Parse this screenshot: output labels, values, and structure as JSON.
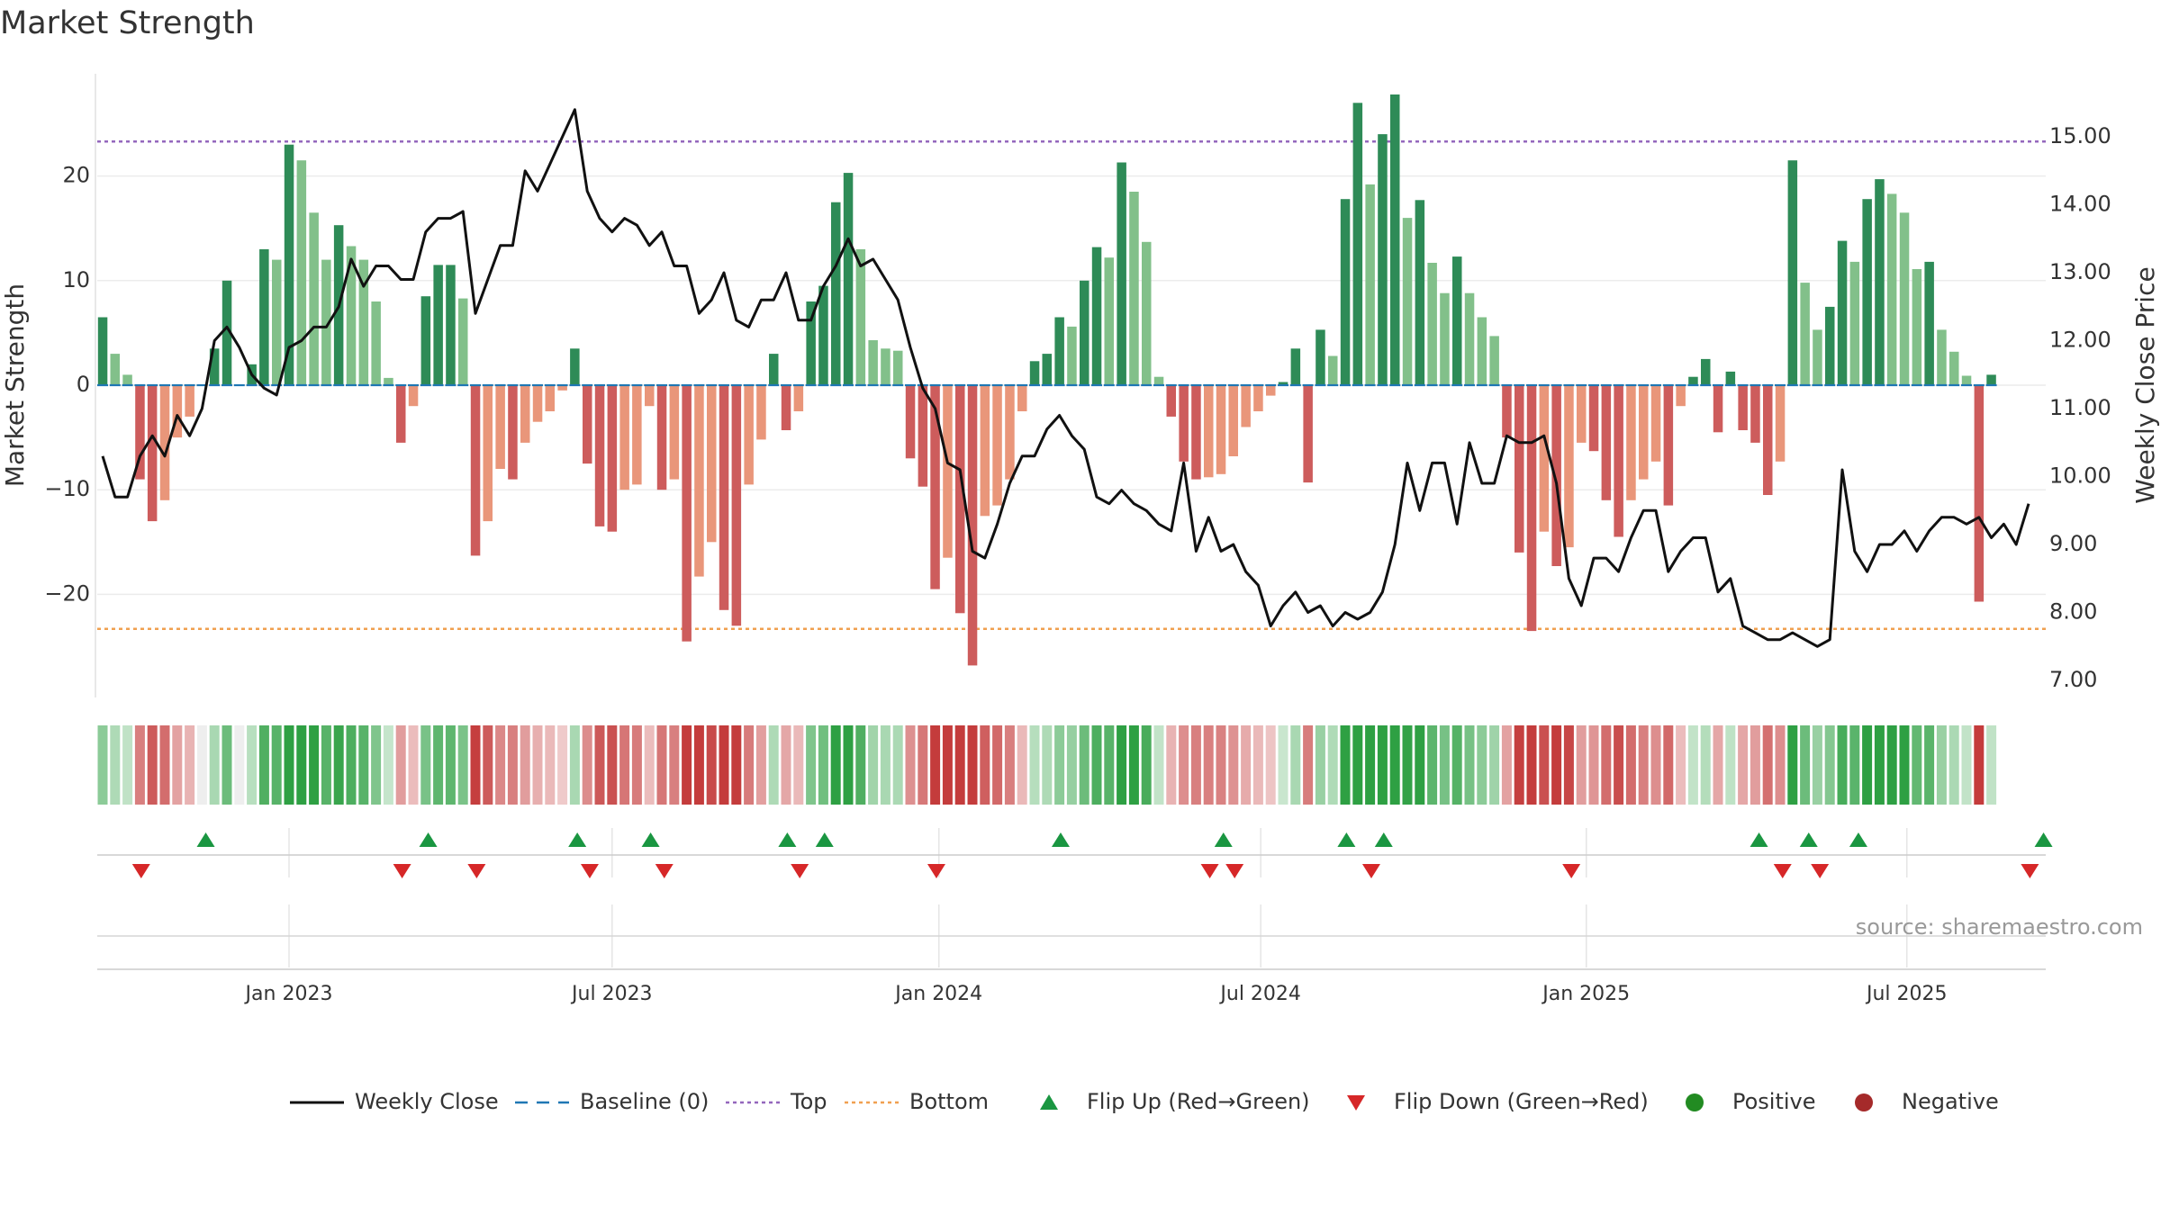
{
  "chart_title": "Market Strength",
  "source": "source: sharemaestro.com",
  "colors": {
    "pos_dark": "#2e8b57",
    "pos_light": "#82c08a",
    "neg_dark": "#cd5c5c",
    "neg_light": "#e9967a",
    "close_line": "#111111",
    "baseline": "#1f77b4",
    "top_line": "#9467bd",
    "bottom_line": "#f0a050",
    "flip_up": "#1a9641",
    "flip_down": "#d62728",
    "positive_dot": "#228b22",
    "negative_dot": "#a52a2a"
  },
  "chart_data": {
    "type": "bar+line",
    "title": "Market Strength",
    "ylabel_left": "Market Strength",
    "ylabel_right": "Weekly Close Price",
    "left_ylim": [
      -30,
      30
    ],
    "left_ticks": [
      20,
      10,
      0,
      -10,
      -20
    ],
    "left_tick_labels": [
      "20",
      "10",
      "0",
      "−10",
      "−20"
    ],
    "right_ylim": [
      6.7,
      15.9
    ],
    "right_ticks": [
      15,
      14,
      13,
      12,
      11,
      10,
      9,
      8,
      7
    ],
    "right_tick_labels": [
      "15.00",
      "14.00",
      "13.00",
      "12.00",
      "11.00",
      "10.00",
      "9.00",
      "8.00",
      "7.00"
    ],
    "top_level": 23.3,
    "bottom_level": -23.3,
    "baseline_level": 0,
    "x_tick_labels": [
      "Jan 2023",
      "Jul 2023",
      "Jan 2024",
      "Jul 2024",
      "Jan 2025",
      "Jul 2025"
    ],
    "x_tick_weeks": [
      15,
      41,
      67.3,
      93.2,
      119.4,
      145.2
    ],
    "strength": [
      6.5,
      3,
      1,
      -9,
      -13,
      -11,
      -5,
      -3,
      0,
      3.5,
      10,
      0,
      2,
      13,
      12,
      23,
      21.5,
      16.5,
      12,
      15.3,
      13.3,
      12,
      8,
      0.7,
      -5.5,
      -2,
      8.5,
      11.5,
      11.5,
      8.3,
      -16.3,
      -13,
      -8,
      -9,
      -5.5,
      -3.5,
      -2.5,
      -0.5,
      3.5,
      -7.5,
      -13.5,
      -14,
      -10,
      -9.5,
      -2,
      -10,
      -9,
      -24.5,
      -18.3,
      -15,
      -21.5,
      -23,
      -9.5,
      -5.2,
      3,
      -4.3,
      -2.5,
      8,
      9.5,
      17.5,
      20.3,
      13,
      4.3,
      3.5,
      3.3,
      -7,
      -9.7,
      -19.5,
      -16.5,
      -21.8,
      -26.8,
      -12.5,
      -11.5,
      -9,
      -2.5,
      2.3,
      3,
      6.5,
      5.6,
      10,
      13.2,
      12.2,
      21.3,
      18.5,
      13.7,
      0.8,
      -3,
      -7.3,
      -9,
      -8.8,
      -8.5,
      -6.8,
      -4,
      -2.5,
      -1,
      0.3,
      3.5,
      -9.3,
      5.3,
      2.8,
      17.8,
      27,
      19.2,
      24,
      27.8,
      16,
      17.7,
      11.7,
      8.8,
      12.3,
      8.8,
      6.5,
      4.7,
      -5,
      -16,
      -23.5,
      -14,
      -17.3,
      -15.5,
      -5.5,
      -6.3,
      -11,
      -14.5,
      -11,
      -9,
      -7.3,
      -11.5,
      -2,
      0.8,
      2.5,
      -4.5,
      1.3,
      -4.3,
      -5.5,
      -10.5,
      -7.3,
      21.5,
      9.8,
      5.3,
      7.5,
      13.8,
      11.8,
      17.8,
      19.7,
      18.3,
      16.5,
      11.1,
      11.8,
      5.3,
      3.2,
      0.9,
      -20.7,
      1
    ],
    "weekly_close": [
      10.3,
      9.7,
      9.7,
      10.3,
      10.6,
      10.3,
      10.9,
      10.6,
      11.0,
      12.0,
      12.2,
      11.9,
      11.5,
      11.3,
      11.2,
      11.9,
      12.0,
      12.2,
      12.2,
      12.5,
      13.2,
      12.8,
      13.1,
      13.1,
      12.9,
      12.9,
      13.6,
      13.8,
      13.8,
      13.9,
      12.4,
      12.9,
      13.4,
      13.4,
      14.5,
      14.2,
      14.6,
      15.0,
      15.4,
      14.2,
      13.8,
      13.6,
      13.8,
      13.7,
      13.4,
      13.6,
      13.1,
      13.1,
      12.4,
      12.6,
      13.0,
      12.3,
      12.2,
      12.6,
      12.6,
      13.0,
      12.3,
      12.3,
      12.8,
      13.1,
      13.5,
      13.1,
      13.2,
      12.9,
      12.6,
      11.9,
      11.3,
      11.0,
      10.2,
      10.1,
      8.9,
      8.8,
      9.3,
      9.9,
      10.3,
      10.3,
      10.7,
      10.9,
      10.6,
      10.4,
      9.7,
      9.6,
      9.8,
      9.6,
      9.5,
      9.3,
      9.2,
      10.2,
      8.9,
      9.4,
      8.9,
      9.0,
      8.6,
      8.4,
      7.8,
      8.1,
      8.3,
      8.0,
      8.1,
      7.8,
      8.0,
      7.9,
      8.0,
      8.3,
      9.0,
      10.2,
      9.5,
      10.2,
      10.2,
      9.3,
      10.5,
      9.9,
      9.9,
      10.6,
      10.5,
      10.5,
      10.6,
      9.9,
      8.5,
      8.1,
      8.8,
      8.8,
      8.6,
      9.1,
      9.5,
      9.5,
      8.6,
      8.9,
      9.1,
      9.1,
      8.3,
      8.5,
      7.8,
      7.7,
      7.6,
      7.6,
      7.7,
      7.6,
      7.5,
      7.6,
      10.1,
      8.9,
      8.6,
      9.0,
      9.0,
      9.2,
      8.9,
      9.2,
      9.4,
      9.4,
      9.3,
      9.4,
      9.1,
      9.3,
      9.0,
      9.6
    ],
    "flip_up_weeks": [
      8.3,
      26.2,
      38.2,
      44.1,
      55.1,
      58.1,
      77.1,
      90.2,
      100.1,
      103.1,
      133.3,
      137.3,
      141.3,
      156.2
    ],
    "flip_down_weeks": [
      3.1,
      24.1,
      30.1,
      39.2,
      45.2,
      56.1,
      67.1,
      89.1,
      91.1,
      102.1,
      118.2,
      135.2,
      138.2,
      155.1
    ]
  },
  "legend": [
    {
      "kind": "line",
      "label": "Weekly Close"
    },
    {
      "kind": "dash",
      "label": "Baseline (0)"
    },
    {
      "kind": "dotted-top",
      "label": "Top"
    },
    {
      "kind": "dotted-bottom",
      "label": "Bottom"
    },
    {
      "kind": "tri-up",
      "label": "Flip Up (Red→Green)"
    },
    {
      "kind": "tri-down",
      "label": "Flip Down (Green→Red)"
    },
    {
      "kind": "dot-pos",
      "label": "Positive"
    },
    {
      "kind": "dot-neg",
      "label": "Negative"
    }
  ]
}
